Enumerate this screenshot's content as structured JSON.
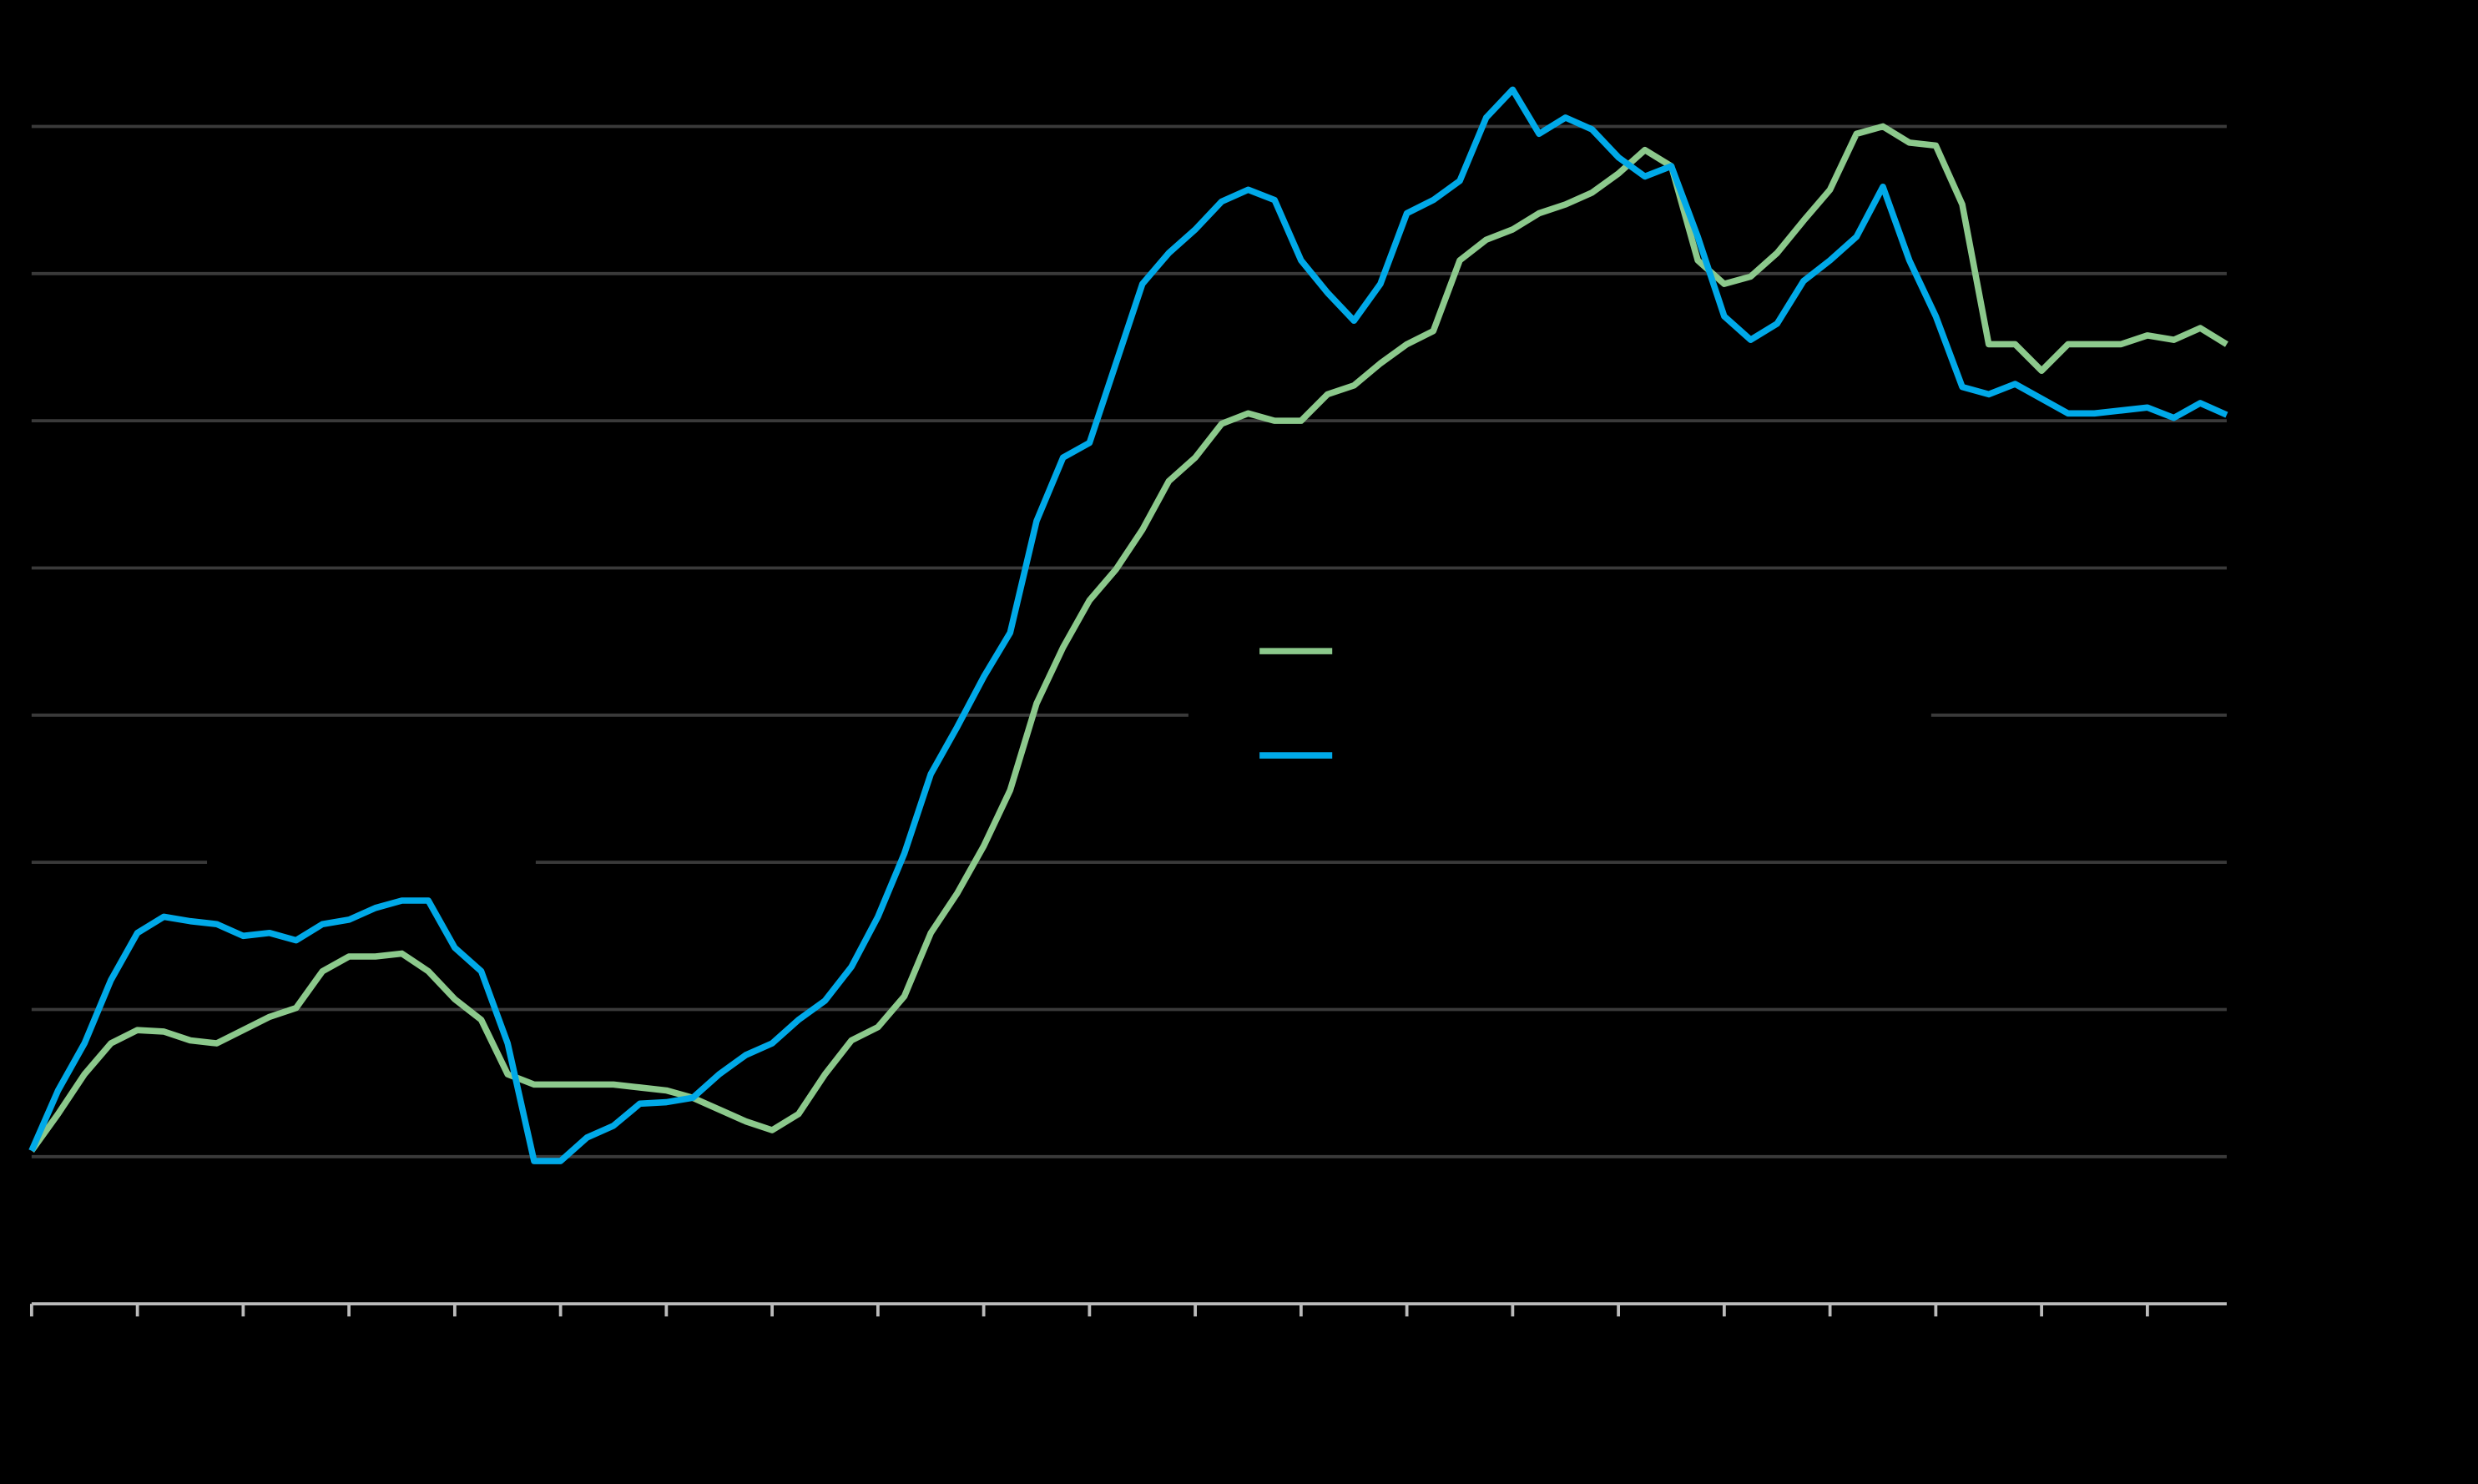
{
  "chart_data": {
    "type": "line",
    "x": [
      0,
      0.25,
      0.5,
      0.75,
      1,
      1.25,
      1.5,
      1.75,
      2,
      2.25,
      2.5,
      2.75,
      3,
      3.25,
      3.5,
      3.75,
      4,
      4.25,
      4.5,
      4.75,
      5,
      5.25,
      5.5,
      5.75,
      6,
      6.25,
      6.5,
      6.75,
      7,
      7.25,
      7.5,
      7.75,
      8,
      8.25,
      8.5,
      8.75,
      9,
      9.25,
      9.5,
      9.75,
      10,
      10.25,
      10.5,
      10.75,
      11,
      11.25,
      11.5,
      11.75,
      12,
      12.25,
      12.5,
      12.75,
      13,
      13.25,
      13.5,
      13.75,
      14,
      14.25,
      14.5,
      14.75,
      15,
      15.25,
      15.5,
      15.75,
      16,
      16.25,
      16.5,
      16.75,
      17,
      17.25,
      17.5,
      17.75,
      18,
      18.25,
      18.5,
      18.75,
      19,
      19.25,
      19.5,
      19.75,
      20,
      20.25,
      20.5,
      20.75
    ],
    "series": [
      {
        "color": "#8cc98c",
        "values": [
          1.04,
          1.29,
          1.56,
          1.77,
          1.86,
          1.85,
          1.79,
          1.77,
          1.86,
          1.95,
          2.01,
          2.26,
          2.36,
          2.36,
          2.38,
          2.26,
          2.07,
          1.93,
          1.56,
          1.49,
          1.49,
          1.49,
          1.49,
          1.47,
          1.45,
          1.4,
          1.32,
          1.24,
          1.18,
          1.29,
          1.56,
          1.79,
          1.88,
          2.09,
          2.52,
          2.79,
          3.11,
          3.49,
          4.08,
          4.46,
          4.78,
          4.99,
          5.26,
          5.59,
          5.75,
          5.98,
          6.05,
          6,
          6,
          6.18,
          6.24,
          6.39,
          6.52,
          6.61,
          7.09,
          7.23,
          7.3,
          7.41,
          7.47,
          7.55,
          7.68,
          7.84,
          7.73,
          7.09,
          6.93,
          6.98,
          7.14,
          7.36,
          7.57,
          7.95,
          8,
          7.89,
          7.87,
          7.47,
          6.52,
          6.52,
          6.34,
          6.52,
          6.52,
          6.52,
          6.58,
          6.55,
          6.63,
          6.52
        ]
      },
      {
        "color": "#00a9e8",
        "values": [
          1.04,
          1.45,
          1.77,
          2.2,
          2.52,
          2.63,
          2.6,
          2.58,
          2.5,
          2.52,
          2.47,
          2.58,
          2.61,
          2.69,
          2.74,
          2.74,
          2.42,
          2.26,
          1.77,
          0.97,
          0.97,
          1.13,
          1.21,
          1.36,
          1.37,
          1.4,
          1.56,
          1.69,
          1.77,
          1.93,
          2.06,
          2.29,
          2.63,
          3.06,
          3.6,
          3.92,
          4.26,
          4.56,
          5.32,
          5.75,
          5.85,
          6.39,
          6.93,
          7.14,
          7.3,
          7.49,
          7.57,
          7.5,
          7.09,
          6.87,
          6.68,
          6.93,
          7.41,
          7.5,
          7.63,
          8.06,
          8.25,
          7.95,
          8.06,
          7.98,
          7.79,
          7.66,
          7.73,
          7.25,
          6.71,
          6.55,
          6.66,
          6.95,
          7.09,
          7.25,
          7.59,
          7.09,
          6.71,
          6.23,
          6.18,
          6.25,
          6.15,
          6.05,
          6.05,
          6.07,
          6.09,
          6.02,
          6.12,
          6.04
        ]
      }
    ],
    "xlim": [
      0,
      20.75
    ],
    "xticks": [
      0,
      1,
      2,
      3,
      4,
      5,
      6,
      7,
      8,
      9,
      10,
      11,
      12,
      13,
      14,
      15,
      16,
      17,
      18,
      19,
      20
    ],
    "ylim": [
      0,
      8.5
    ],
    "yticks": [
      1,
      2,
      3,
      4,
      5,
      6,
      7,
      8
    ],
    "grid": true
  }
}
